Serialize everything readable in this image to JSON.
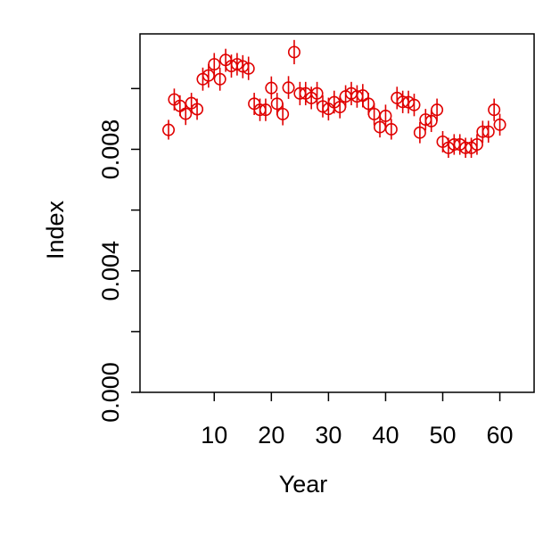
{
  "chart_data": {
    "type": "scatter",
    "xlabel": "Year",
    "ylabel": "Index",
    "xlim": [
      -3,
      66
    ],
    "ylim": [
      0,
      0.0118
    ],
    "x_ticks": [
      10,
      20,
      30,
      40,
      50,
      60
    ],
    "x_tick_labels": [
      "10",
      "20",
      "30",
      "40",
      "50",
      "60"
    ],
    "y_ticks": [
      0,
      0.002,
      0.004,
      0.006,
      0.008,
      0.01
    ],
    "y_tick_labels": [
      "0.000",
      "",
      "0.004",
      "",
      "0.008",
      ""
    ],
    "grid": false,
    "series": [
      {
        "color": "#e00000",
        "marker": "open-circle",
        "x": [
          2,
          3,
          4,
          5,
          6,
          7,
          8,
          9,
          10,
          11,
          12,
          13,
          14,
          15,
          16,
          17,
          18,
          19,
          20,
          21,
          22,
          23,
          24,
          25,
          26,
          27,
          28,
          29,
          30,
          31,
          32,
          33,
          34,
          35,
          36,
          37,
          38,
          39,
          40,
          41,
          42,
          43,
          44,
          45,
          46,
          47,
          48,
          49,
          50,
          51,
          52,
          53,
          54,
          55,
          56,
          57,
          58,
          59,
          60
        ],
        "y": [
          0.00864,
          0.00964,
          0.00943,
          0.00917,
          0.00952,
          0.00932,
          0.01031,
          0.01043,
          0.0108,
          0.01031,
          0.01094,
          0.01074,
          0.0108,
          0.01073,
          0.01066,
          0.0095,
          0.0093,
          0.0093,
          0.01002,
          0.0095,
          0.00916,
          0.01003,
          0.0112,
          0.00984,
          0.00984,
          0.00969,
          0.00984,
          0.00941,
          0.00933,
          0.00955,
          0.00939,
          0.00974,
          0.00984,
          0.00974,
          0.00977,
          0.0095,
          0.00916,
          0.00873,
          0.0091,
          0.00866,
          0.00969,
          0.00956,
          0.00955,
          0.00946,
          0.00855,
          0.00898,
          0.00893,
          0.0093,
          0.00825,
          0.00805,
          0.00816,
          0.00816,
          0.00805,
          0.00805,
          0.00816,
          0.00858,
          0.00858,
          0.0093,
          0.00881
        ],
        "err_low": [
          0.00832,
          0.00928,
          0.00909,
          0.0088,
          0.00919,
          0.00897,
          0.00993,
          0.01003,
          0.01043,
          0.00993,
          0.01055,
          0.01036,
          0.01043,
          0.01034,
          0.01028,
          0.00913,
          0.00893,
          0.00893,
          0.00965,
          0.00913,
          0.00879,
          0.00966,
          0.0108,
          0.00945,
          0.00945,
          0.00932,
          0.00945,
          0.00905,
          0.00895,
          0.00918,
          0.00902,
          0.00937,
          0.00945,
          0.00937,
          0.00938,
          0.00913,
          0.00879,
          0.00839,
          0.00874,
          0.00832,
          0.00932,
          0.00919,
          0.00918,
          0.00909,
          0.0082,
          0.00862,
          0.00857,
          0.00893,
          0.0079,
          0.00772,
          0.00782,
          0.00782,
          0.00772,
          0.00772,
          0.00782,
          0.00822,
          0.00822,
          0.00893,
          0.00845
        ],
        "err_high": [
          0.00897,
          0.01,
          0.00978,
          0.00954,
          0.00986,
          0.00967,
          0.01069,
          0.0108,
          0.01117,
          0.01069,
          0.01131,
          0.01112,
          0.01117,
          0.0111,
          0.01105,
          0.00986,
          0.00967,
          0.00967,
          0.0104,
          0.00986,
          0.00952,
          0.01041,
          0.0116,
          0.01022,
          0.01022,
          0.01006,
          0.01022,
          0.00978,
          0.0097,
          0.00993,
          0.00976,
          0.01011,
          0.01022,
          0.01011,
          0.01015,
          0.00986,
          0.00952,
          0.00907,
          0.00947,
          0.009,
          0.01006,
          0.00993,
          0.00993,
          0.00983,
          0.0089,
          0.00933,
          0.00929,
          0.00967,
          0.0086,
          0.00838,
          0.0085,
          0.0085,
          0.00838,
          0.00838,
          0.0085,
          0.00894,
          0.00894,
          0.00967,
          0.00917
        ]
      }
    ]
  }
}
